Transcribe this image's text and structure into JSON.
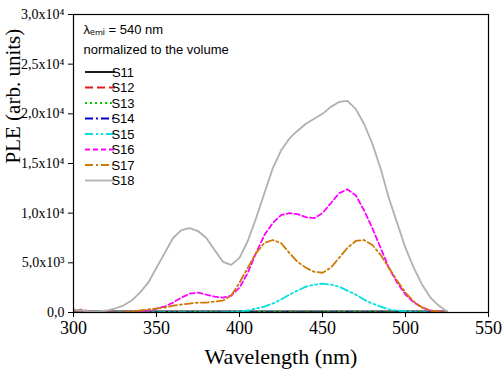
{
  "chart_data": {
    "type": "line",
    "x_label": "Wavelength (nm)",
    "y_label": "PLE (arb. units)",
    "annotations": [
      "λₑₘᵢ = 540 nm",
      "normalized to the volume"
    ],
    "legend": "upper left",
    "xlim": [
      300,
      550
    ],
    "xticks": [
      300,
      350,
      400,
      450,
      500,
      550
    ],
    "ylim": [
      0,
      30000
    ],
    "yticks": [
      {
        "value": 0,
        "label": "0,0"
      },
      {
        "value": 5000,
        "label": "5,0x10³"
      },
      {
        "value": 10000,
        "label": "1,0x10⁴"
      },
      {
        "value": 15000,
        "label": "1,5x10⁴"
      },
      {
        "value": 20000,
        "label": "2,0x10⁴"
      },
      {
        "value": 25000,
        "label": "2,5x10⁴"
      },
      {
        "value": 30000,
        "label": "3,0x10⁴"
      }
    ],
    "x": [
      300,
      305,
      310,
      315,
      320,
      325,
      330,
      335,
      340,
      345,
      350,
      355,
      360,
      365,
      370,
      375,
      380,
      385,
      390,
      395,
      400,
      405,
      410,
      415,
      420,
      425,
      430,
      435,
      440,
      445,
      450,
      455,
      460,
      465,
      470,
      475,
      480,
      485,
      490,
      495,
      500,
      505,
      510,
      515,
      520,
      525
    ],
    "series": [
      {
        "name": "S11",
        "color": "#000000",
        "line_style": "solid",
        "values": [
          300,
          150,
          100,
          100,
          100,
          100,
          100,
          100,
          100,
          100,
          100,
          100,
          100,
          100,
          100,
          100,
          100,
          100,
          100,
          100,
          100,
          100,
          100,
          100,
          100,
          100,
          100,
          100,
          100,
          100,
          100,
          100,
          100,
          100,
          100,
          100,
          100,
          100,
          100,
          100,
          100,
          100,
          100,
          100,
          100,
          100
        ]
      },
      {
        "name": "S12",
        "color": "#e41a1c",
        "line_style": "dashed",
        "values": [
          200,
          300,
          100,
          50,
          50,
          50,
          50,
          50,
          50,
          50,
          50,
          50,
          50,
          50,
          50,
          50,
          50,
          50,
          50,
          50,
          50,
          50,
          50,
          50,
          50,
          50,
          50,
          50,
          50,
          50,
          50,
          50,
          50,
          50,
          50,
          50,
          50,
          50,
          50,
          50,
          50,
          50,
          50,
          50,
          50,
          50
        ]
      },
      {
        "name": "S13",
        "color": "#00cc00",
        "line_style": "dotted",
        "values": [
          50,
          50,
          50,
          50,
          50,
          50,
          50,
          50,
          50,
          50,
          50,
          50,
          50,
          50,
          50,
          50,
          50,
          50,
          50,
          50,
          50,
          50,
          50,
          50,
          50,
          50,
          50,
          50,
          50,
          50,
          50,
          50,
          50,
          50,
          50,
          50,
          50,
          50,
          50,
          50,
          50,
          50,
          50,
          50,
          50,
          50
        ]
      },
      {
        "name": "S14",
        "color": "#0000cc",
        "line_style": "dashdot",
        "values": [
          0,
          0,
          0,
          0,
          0,
          0,
          0,
          0,
          0,
          0,
          0,
          0,
          0,
          0,
          0,
          0,
          0,
          0,
          0,
          0,
          0,
          0,
          0,
          0,
          0,
          0,
          0,
          0,
          0,
          0,
          0,
          0,
          0,
          0,
          0,
          0,
          0,
          0,
          0,
          0,
          0,
          0,
          0,
          0,
          0,
          0
        ]
      },
      {
        "name": "S15",
        "color": "#00e0e0",
        "line_style": "dashdotdot",
        "values": [
          0,
          0,
          0,
          0,
          0,
          0,
          0,
          0,
          0,
          0,
          0,
          0,
          0,
          0,
          0,
          0,
          0,
          0,
          0,
          50,
          100,
          200,
          400,
          600,
          900,
          1300,
          1800,
          2200,
          2600,
          2800,
          2900,
          2800,
          2600,
          2200,
          1800,
          1300,
          900,
          600,
          300,
          200,
          100,
          50,
          0,
          0,
          0,
          0
        ]
      },
      {
        "name": "S16",
        "color": "#ff00ff",
        "line_style": "shortdash",
        "values": [
          0,
          0,
          0,
          0,
          0,
          0,
          0,
          0,
          100,
          200,
          400,
          600,
          1000,
          1500,
          1900,
          2000,
          1800,
          1600,
          1500,
          1700,
          2500,
          4000,
          6000,
          7800,
          9000,
          9800,
          10000,
          9900,
          9600,
          9500,
          10000,
          11000,
          12000,
          12400,
          11800,
          10300,
          8500,
          6500,
          4500,
          3000,
          1800,
          1000,
          500,
          200,
          100,
          0
        ]
      },
      {
        "name": "S17",
        "color": "#cc7a00",
        "line_style": "dashdot",
        "values": [
          0,
          0,
          0,
          0,
          0,
          0,
          0,
          100,
          200,
          300,
          400,
          500,
          700,
          800,
          900,
          1000,
          1000,
          1100,
          1200,
          1700,
          3000,
          4500,
          6000,
          7000,
          7300,
          7000,
          6000,
          5100,
          4500,
          4100,
          4000,
          4500,
          5500,
          6500,
          7200,
          7300,
          6800,
          5800,
          4500,
          3200,
          2000,
          1100,
          500,
          200,
          100,
          0
        ]
      },
      {
        "name": "S18",
        "color": "#b0b0b0",
        "line_style": "solid",
        "values": [
          300,
          200,
          100,
          100,
          200,
          400,
          700,
          1200,
          2000,
          3000,
          4500,
          6000,
          7500,
          8300,
          8500,
          8200,
          7500,
          6300,
          5100,
          4800,
          5500,
          7200,
          9500,
          12000,
          14500,
          16300,
          17500,
          18300,
          19000,
          19500,
          20000,
          20700,
          21200,
          21300,
          20500,
          19000,
          17000,
          14500,
          11500,
          9000,
          6500,
          4500,
          2800,
          1500,
          700,
          100
        ]
      }
    ]
  }
}
